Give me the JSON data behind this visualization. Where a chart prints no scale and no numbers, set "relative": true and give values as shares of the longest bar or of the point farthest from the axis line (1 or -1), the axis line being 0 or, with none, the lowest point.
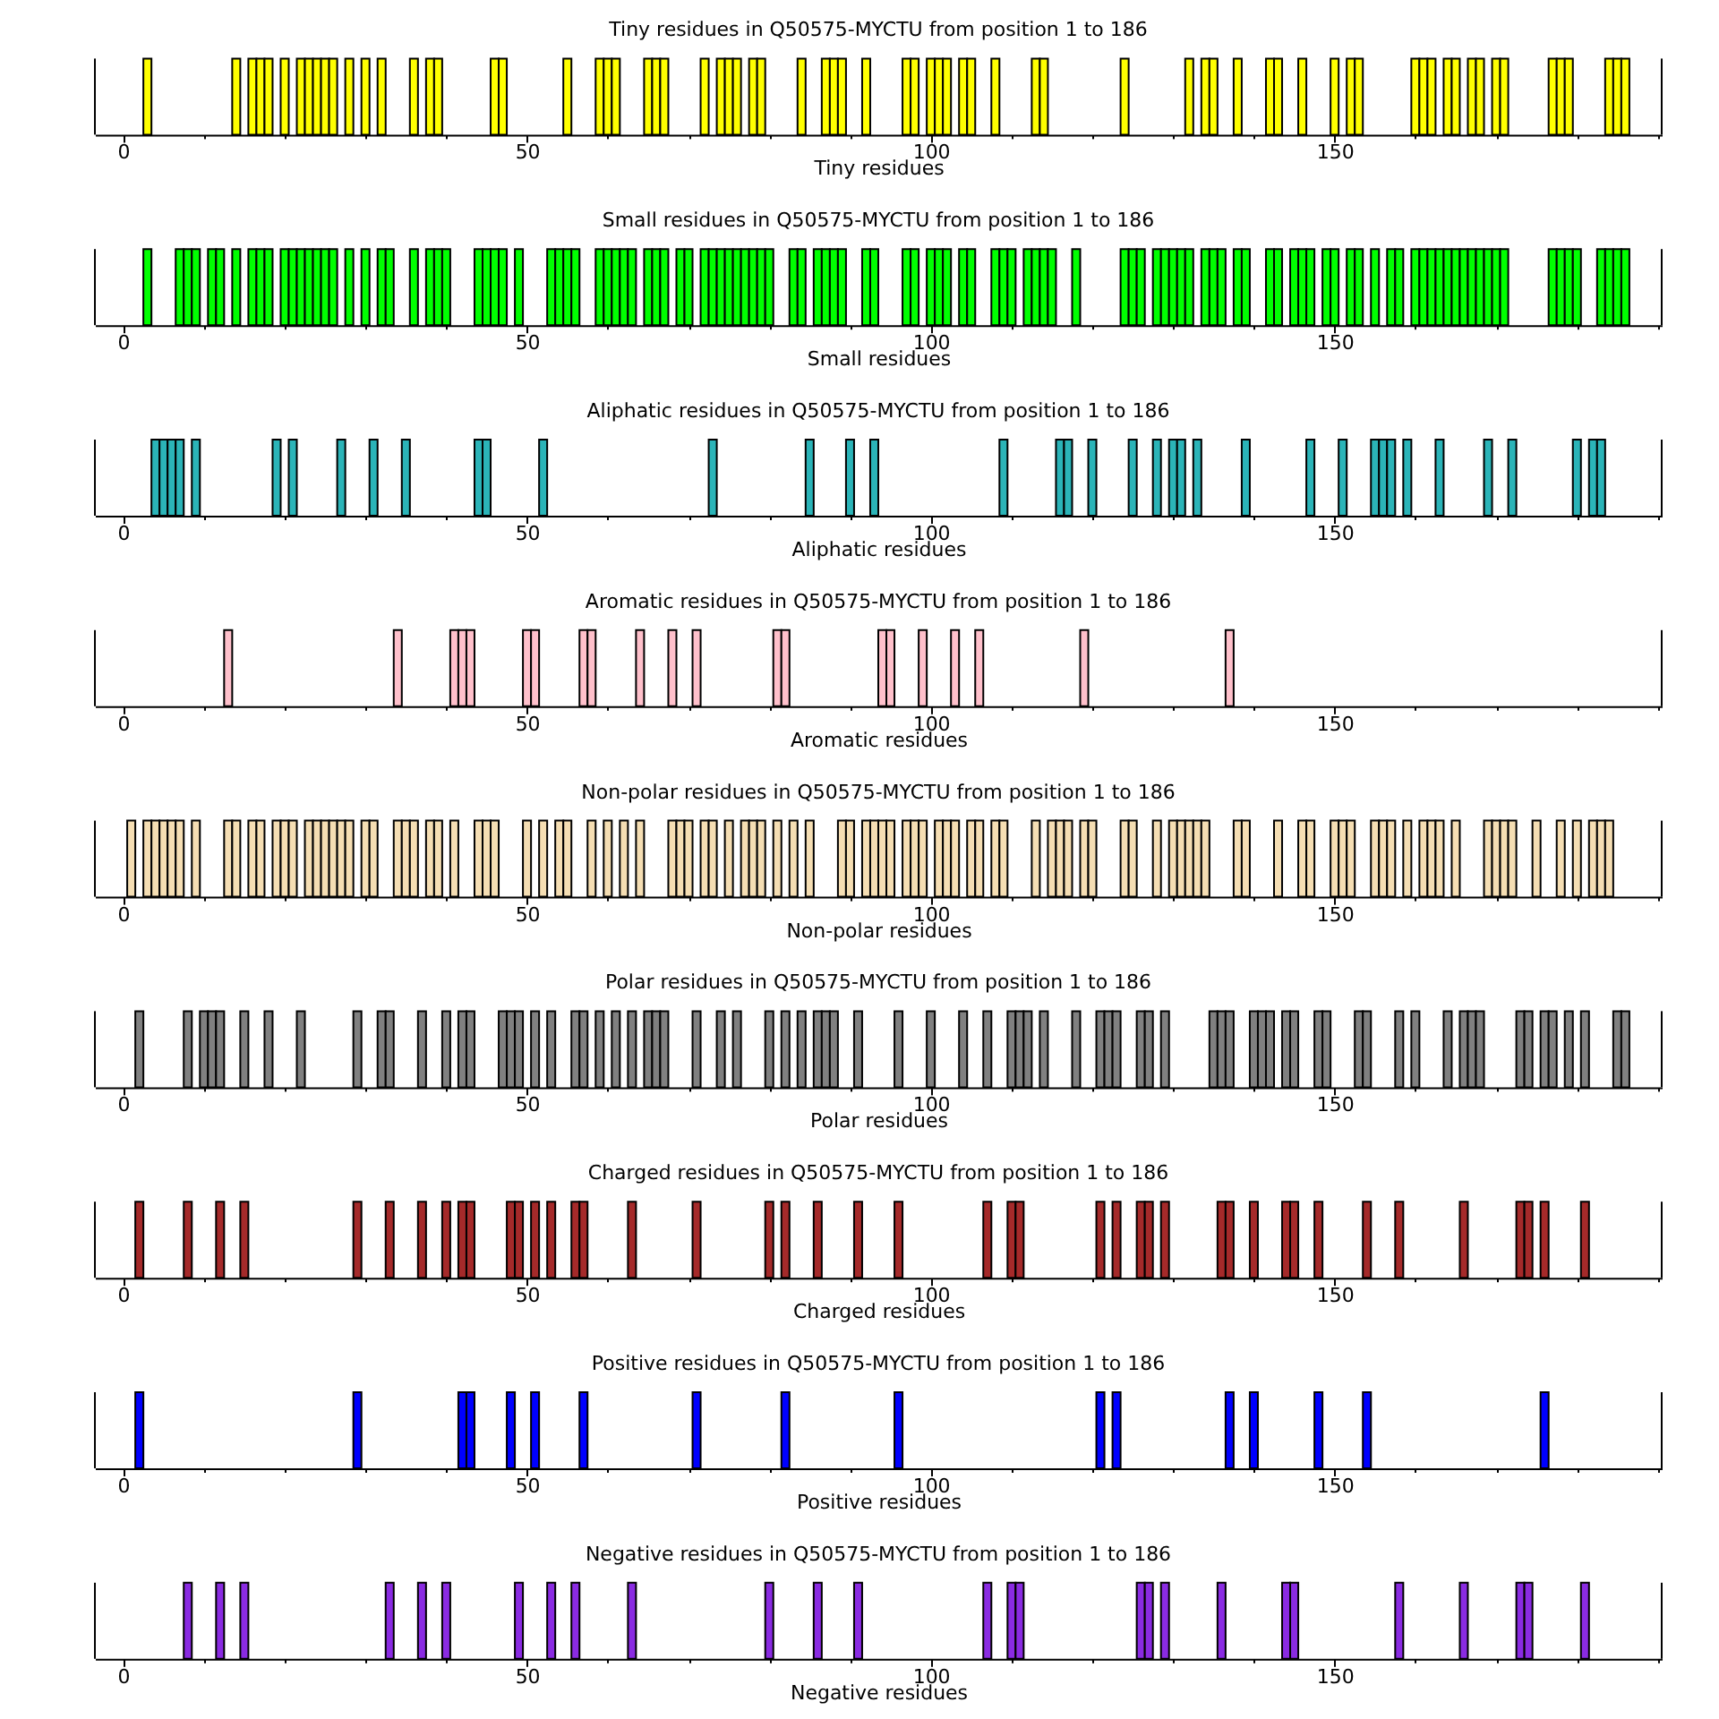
{
  "chart_data": [
    {
      "type": "bar",
      "title": "Tiny residues in Q50575-MYCTU from position 1 to 186",
      "xlabel": "Tiny residues",
      "color": "#ffff00",
      "relative": true,
      "xlim": [
        -3.5,
        190.5
      ],
      "xticks": [
        0,
        {
          "value": 10,
          "label": null
        },
        {
          "value": 20,
          "label": null
        },
        {
          "value": 30,
          "label": null
        },
        {
          "value": 40,
          "label": null
        },
        50,
        {
          "value": 60,
          "label": null
        },
        {
          "value": 70,
          "label": null
        },
        {
          "value": 80,
          "label": null
        },
        {
          "value": 90,
          "label": null
        },
        100,
        {
          "value": 110,
          "label": null
        },
        {
          "value": 120,
          "label": null
        },
        {
          "value": 130,
          "label": null
        },
        {
          "value": 140,
          "label": null
        },
        150,
        {
          "value": 160,
          "label": null
        },
        {
          "value": 170,
          "label": null
        },
        {
          "value": 180,
          "label": null
        },
        {
          "value": 190,
          "label": null
        }
      ],
      "x": [
        3,
        14,
        16,
        17,
        18,
        20,
        22,
        23,
        24,
        25,
        26,
        28,
        30,
        32,
        36,
        38,
        39,
        46,
        47,
        55,
        59,
        60,
        61,
        65,
        66,
        67,
        72,
        74,
        75,
        76,
        78,
        79,
        84,
        87,
        88,
        89,
        92,
        97,
        98,
        100,
        101,
        102,
        104,
        105,
        108,
        113,
        114,
        124,
        132,
        134,
        135,
        138,
        142,
        143,
        146,
        150,
        152,
        153,
        160,
        161,
        162,
        164,
        165,
        167,
        168,
        170,
        171,
        177,
        178,
        179,
        184,
        185,
        186
      ],
      "values": [
        1,
        1,
        1,
        1,
        1,
        1,
        1,
        1,
        1,
        1,
        1,
        1,
        1,
        1,
        1,
        1,
        1,
        1,
        1,
        1,
        1,
        1,
        1,
        1,
        1,
        1,
        1,
        1,
        1,
        1,
        1,
        1,
        1,
        1,
        1,
        1,
        1,
        1,
        1,
        1,
        1,
        1,
        1,
        1,
        1,
        1,
        1,
        1,
        1,
        1,
        1,
        1,
        1,
        1,
        1,
        1,
        1,
        1,
        1,
        1,
        1,
        1,
        1,
        1,
        1,
        1,
        1,
        1,
        1,
        1,
        1,
        1,
        1
      ]
    },
    {
      "type": "bar",
      "title": "Small residues in Q50575-MYCTU from position 1 to 186",
      "xlabel": "Small residues",
      "color": "#00ff00",
      "relative": true,
      "xlim": [
        -3.5,
        190.5
      ],
      "xticks": [
        0,
        {
          "value": 10,
          "label": null
        },
        {
          "value": 20,
          "label": null
        },
        {
          "value": 30,
          "label": null
        },
        {
          "value": 40,
          "label": null
        },
        50,
        {
          "value": 60,
          "label": null
        },
        {
          "value": 70,
          "label": null
        },
        {
          "value": 80,
          "label": null
        },
        {
          "value": 90,
          "label": null
        },
        100,
        {
          "value": 110,
          "label": null
        },
        {
          "value": 120,
          "label": null
        },
        {
          "value": 130,
          "label": null
        },
        {
          "value": 140,
          "label": null
        },
        150,
        {
          "value": 160,
          "label": null
        },
        {
          "value": 170,
          "label": null
        },
        {
          "value": 180,
          "label": null
        },
        {
          "value": 190,
          "label": null
        }
      ],
      "x": [
        3,
        7,
        8,
        9,
        11,
        12,
        14,
        16,
        17,
        18,
        20,
        21,
        22,
        23,
        24,
        25,
        26,
        28,
        30,
        32,
        33,
        36,
        38,
        39,
        40,
        44,
        45,
        46,
        47,
        49,
        53,
        54,
        55,
        56,
        59,
        60,
        61,
        62,
        63,
        65,
        66,
        67,
        69,
        70,
        72,
        73,
        74,
        75,
        76,
        77,
        78,
        79,
        80,
        83,
        84,
        86,
        87,
        88,
        89,
        92,
        93,
        97,
        98,
        100,
        101,
        102,
        104,
        105,
        108,
        109,
        110,
        112,
        113,
        114,
        115,
        118,
        124,
        125,
        126,
        128,
        129,
        130,
        131,
        132,
        134,
        135,
        136,
        138,
        139,
        142,
        143,
        145,
        146,
        147,
        149,
        150,
        152,
        153,
        155,
        157,
        158,
        160,
        161,
        162,
        163,
        164,
        165,
        166,
        167,
        168,
        169,
        170,
        171,
        177,
        178,
        179,
        180,
        183,
        184,
        185,
        186
      ],
      "values": [
        1,
        1,
        1,
        1,
        1,
        1,
        1,
        1,
        1,
        1,
        1,
        1,
        1,
        1,
        1,
        1,
        1,
        1,
        1,
        1,
        1,
        1,
        1,
        1,
        1,
        1,
        1,
        1,
        1,
        1,
        1,
        1,
        1,
        1,
        1,
        1,
        1,
        1,
        1,
        1,
        1,
        1,
        1,
        1,
        1,
        1,
        1,
        1,
        1,
        1,
        1,
        1,
        1,
        1,
        1,
        1,
        1,
        1,
        1,
        1,
        1,
        1,
        1,
        1,
        1,
        1,
        1,
        1,
        1,
        1,
        1,
        1,
        1,
        1,
        1,
        1,
        1,
        1,
        1,
        1,
        1,
        1,
        1,
        1,
        1,
        1,
        1,
        1,
        1,
        1,
        1,
        1,
        1,
        1,
        1,
        1,
        1,
        1,
        1,
        1,
        1,
        1,
        1,
        1,
        1,
        1,
        1,
        1,
        1,
        1,
        1,
        1,
        1,
        1,
        1,
        1,
        1,
        1,
        1,
        1,
        1
      ]
    },
    {
      "type": "bar",
      "title": "Aliphatic residues in Q50575-MYCTU from position 1 to 186",
      "xlabel": "Aliphatic residues",
      "color": "#2bb4b8",
      "relative": true,
      "xlim": [
        -3.5,
        190.5
      ],
      "xticks": [
        0,
        {
          "value": 10,
          "label": null
        },
        {
          "value": 20,
          "label": null
        },
        {
          "value": 30,
          "label": null
        },
        {
          "value": 40,
          "label": null
        },
        50,
        {
          "value": 60,
          "label": null
        },
        {
          "value": 70,
          "label": null
        },
        {
          "value": 80,
          "label": null
        },
        {
          "value": 90,
          "label": null
        },
        100,
        {
          "value": 110,
          "label": null
        },
        {
          "value": 120,
          "label": null
        },
        {
          "value": 130,
          "label": null
        },
        {
          "value": 140,
          "label": null
        },
        150,
        {
          "value": 160,
          "label": null
        },
        {
          "value": 170,
          "label": null
        },
        {
          "value": 180,
          "label": null
        },
        {
          "value": 190,
          "label": null
        }
      ],
      "x": [
        4,
        5,
        6,
        7,
        9,
        19,
        21,
        27,
        31,
        35,
        44,
        45,
        52,
        73,
        85,
        90,
        93,
        109,
        116,
        117,
        120,
        125,
        128,
        130,
        131,
        133,
        139,
        147,
        151,
        155,
        156,
        157,
        159,
        163,
        169,
        172,
        180,
        182,
        183
      ],
      "values": [
        1,
        1,
        1,
        1,
        1,
        1,
        1,
        1,
        1,
        1,
        1,
        1,
        1,
        1,
        1,
        1,
        1,
        1,
        1,
        1,
        1,
        1,
        1,
        1,
        1,
        1,
        1,
        1,
        1,
        1,
        1,
        1,
        1,
        1,
        1,
        1,
        1,
        1,
        1
      ]
    },
    {
      "type": "bar",
      "title": "Aromatic residues in Q50575-MYCTU from position 1 to 186",
      "xlabel": "Aromatic residues",
      "color": "#ffc0cb",
      "relative": true,
      "xlim": [
        -3.5,
        190.5
      ],
      "xticks": [
        0,
        {
          "value": 10,
          "label": null
        },
        {
          "value": 20,
          "label": null
        },
        {
          "value": 30,
          "label": null
        },
        {
          "value": 40,
          "label": null
        },
        50,
        {
          "value": 60,
          "label": null
        },
        {
          "value": 70,
          "label": null
        },
        {
          "value": 80,
          "label": null
        },
        {
          "value": 90,
          "label": null
        },
        100,
        {
          "value": 110,
          "label": null
        },
        {
          "value": 120,
          "label": null
        },
        {
          "value": 130,
          "label": null
        },
        {
          "value": 140,
          "label": null
        },
        150,
        {
          "value": 160,
          "label": null
        },
        {
          "value": 170,
          "label": null
        },
        {
          "value": 180,
          "label": null
        },
        {
          "value": 190,
          "label": null
        }
      ],
      "x": [
        13,
        34,
        41,
        42,
        43,
        50,
        51,
        57,
        58,
        64,
        68,
        71,
        81,
        82,
        94,
        95,
        99,
        103,
        106,
        119,
        137
      ],
      "values": [
        1,
        1,
        1,
        1,
        1,
        1,
        1,
        1,
        1,
        1,
        1,
        1,
        1,
        1,
        1,
        1,
        1,
        1,
        1,
        1,
        1
      ]
    },
    {
      "type": "bar",
      "title": "Non-polar residues in Q50575-MYCTU from position 1 to 186",
      "xlabel": "Non-polar residues",
      "color": "#f5deb3",
      "relative": true,
      "xlim": [
        -3.5,
        190.5
      ],
      "xticks": [
        0,
        {
          "value": 10,
          "label": null
        },
        {
          "value": 20,
          "label": null
        },
        {
          "value": 30,
          "label": null
        },
        {
          "value": 40,
          "label": null
        },
        50,
        {
          "value": 60,
          "label": null
        },
        {
          "value": 70,
          "label": null
        },
        {
          "value": 80,
          "label": null
        },
        {
          "value": 90,
          "label": null
        },
        100,
        {
          "value": 110,
          "label": null
        },
        {
          "value": 120,
          "label": null
        },
        {
          "value": 130,
          "label": null
        },
        {
          "value": 140,
          "label": null
        },
        150,
        {
          "value": 160,
          "label": null
        },
        {
          "value": 170,
          "label": null
        },
        {
          "value": 180,
          "label": null
        },
        {
          "value": 190,
          "label": null
        }
      ],
      "x": [
        1,
        3,
        4,
        5,
        6,
        7,
        9,
        13,
        14,
        16,
        17,
        19,
        20,
        21,
        23,
        24,
        25,
        26,
        27,
        28,
        30,
        31,
        34,
        35,
        36,
        38,
        39,
        41,
        44,
        45,
        46,
        50,
        52,
        54,
        55,
        58,
        60,
        62,
        64,
        68,
        69,
        70,
        72,
        73,
        75,
        77,
        78,
        79,
        81,
        83,
        85,
        89,
        90,
        92,
        93,
        94,
        95,
        97,
        98,
        99,
        101,
        102,
        103,
        105,
        106,
        108,
        109,
        113,
        115,
        116,
        117,
        119,
        120,
        124,
        125,
        128,
        130,
        131,
        132,
        133,
        134,
        138,
        139,
        143,
        146,
        147,
        150,
        151,
        152,
        155,
        156,
        157,
        159,
        161,
        162,
        163,
        165,
        169,
        170,
        171,
        172,
        175,
        178,
        180,
        182,
        183,
        184
      ],
      "values": [
        1,
        1,
        1,
        1,
        1,
        1,
        1,
        1,
        1,
        1,
        1,
        1,
        1,
        1,
        1,
        1,
        1,
        1,
        1,
        1,
        1,
        1,
        1,
        1,
        1,
        1,
        1,
        1,
        1,
        1,
        1,
        1,
        1,
        1,
        1,
        1,
        1,
        1,
        1,
        1,
        1,
        1,
        1,
        1,
        1,
        1,
        1,
        1,
        1,
        1,
        1,
        1,
        1,
        1,
        1,
        1,
        1,
        1,
        1,
        1,
        1,
        1,
        1,
        1,
        1,
        1,
        1,
        1,
        1,
        1,
        1,
        1,
        1,
        1,
        1,
        1,
        1,
        1,
        1,
        1,
        1,
        1,
        1,
        1,
        1,
        1,
        1,
        1,
        1,
        1,
        1,
        1,
        1,
        1,
        1,
        1,
        1,
        1,
        1,
        1,
        1,
        1,
        1,
        1,
        1,
        1,
        1
      ]
    },
    {
      "type": "bar",
      "title": "Polar residues in Q50575-MYCTU from position 1 to 186",
      "xlabel": "Polar residues",
      "color": "#808080",
      "relative": true,
      "xlim": [
        -3.5,
        190.5
      ],
      "xticks": [
        0,
        {
          "value": 10,
          "label": null
        },
        {
          "value": 20,
          "label": null
        },
        {
          "value": 30,
          "label": null
        },
        {
          "value": 40,
          "label": null
        },
        50,
        {
          "value": 60,
          "label": null
        },
        {
          "value": 70,
          "label": null
        },
        {
          "value": 80,
          "label": null
        },
        {
          "value": 90,
          "label": null
        },
        100,
        {
          "value": 110,
          "label": null
        },
        {
          "value": 120,
          "label": null
        },
        {
          "value": 130,
          "label": null
        },
        {
          "value": 140,
          "label": null
        },
        150,
        {
          "value": 160,
          "label": null
        },
        {
          "value": 170,
          "label": null
        },
        {
          "value": 180,
          "label": null
        },
        {
          "value": 190,
          "label": null
        }
      ],
      "x": [
        2,
        8,
        10,
        11,
        12,
        15,
        18,
        22,
        29,
        32,
        33,
        37,
        40,
        42,
        43,
        47,
        48,
        49,
        51,
        53,
        56,
        57,
        59,
        61,
        63,
        65,
        66,
        67,
        71,
        74,
        76,
        80,
        82,
        84,
        86,
        87,
        88,
        91,
        96,
        100,
        104,
        107,
        110,
        111,
        112,
        114,
        118,
        121,
        122,
        123,
        126,
        127,
        129,
        135,
        136,
        137,
        140,
        141,
        142,
        144,
        145,
        148,
        149,
        153,
        154,
        158,
        160,
        164,
        166,
        167,
        168,
        173,
        174,
        176,
        177,
        179,
        181,
        185,
        186
      ],
      "values": [
        1,
        1,
        1,
        1,
        1,
        1,
        1,
        1,
        1,
        1,
        1,
        1,
        1,
        1,
        1,
        1,
        1,
        1,
        1,
        1,
        1,
        1,
        1,
        1,
        1,
        1,
        1,
        1,
        1,
        1,
        1,
        1,
        1,
        1,
        1,
        1,
        1,
        1,
        1,
        1,
        1,
        1,
        1,
        1,
        1,
        1,
        1,
        1,
        1,
        1,
        1,
        1,
        1,
        1,
        1,
        1,
        1,
        1,
        1,
        1,
        1,
        1,
        1,
        1,
        1,
        1,
        1,
        1,
        1,
        1,
        1,
        1,
        1,
        1,
        1,
        1,
        1,
        1,
        1
      ]
    },
    {
      "type": "bar",
      "title": "Charged residues in Q50575-MYCTU from position 1 to 186",
      "xlabel": "Charged residues",
      "color": "#a52a2a",
      "relative": true,
      "xlim": [
        -3.5,
        190.5
      ],
      "xticks": [
        0,
        {
          "value": 10,
          "label": null
        },
        {
          "value": 20,
          "label": null
        },
        {
          "value": 30,
          "label": null
        },
        {
          "value": 40,
          "label": null
        },
        50,
        {
          "value": 60,
          "label": null
        },
        {
          "value": 70,
          "label": null
        },
        {
          "value": 80,
          "label": null
        },
        {
          "value": 90,
          "label": null
        },
        100,
        {
          "value": 110,
          "label": null
        },
        {
          "value": 120,
          "label": null
        },
        {
          "value": 130,
          "label": null
        },
        {
          "value": 140,
          "label": null
        },
        150,
        {
          "value": 160,
          "label": null
        },
        {
          "value": 170,
          "label": null
        },
        {
          "value": 180,
          "label": null
        },
        {
          "value": 190,
          "label": null
        }
      ],
      "x": [
        2,
        8,
        12,
        15,
        29,
        33,
        37,
        40,
        42,
        43,
        48,
        49,
        51,
        53,
        56,
        57,
        63,
        71,
        80,
        82,
        86,
        91,
        96,
        107,
        110,
        111,
        121,
        123,
        126,
        127,
        129,
        136,
        137,
        140,
        144,
        145,
        148,
        154,
        158,
        166,
        173,
        174,
        176,
        181
      ],
      "values": [
        1,
        1,
        1,
        1,
        1,
        1,
        1,
        1,
        1,
        1,
        1,
        1,
        1,
        1,
        1,
        1,
        1,
        1,
        1,
        1,
        1,
        1,
        1,
        1,
        1,
        1,
        1,
        1,
        1,
        1,
        1,
        1,
        1,
        1,
        1,
        1,
        1,
        1,
        1,
        1,
        1,
        1,
        1,
        1
      ]
    },
    {
      "type": "bar",
      "title": "Positive residues in Q50575-MYCTU from position 1 to 186",
      "xlabel": "Positive residues",
      "color": "#0000ff",
      "relative": true,
      "xlim": [
        -3.5,
        190.5
      ],
      "xticks": [
        0,
        {
          "value": 10,
          "label": null
        },
        {
          "value": 20,
          "label": null
        },
        {
          "value": 30,
          "label": null
        },
        {
          "value": 40,
          "label": null
        },
        50,
        {
          "value": 60,
          "label": null
        },
        {
          "value": 70,
          "label": null
        },
        {
          "value": 80,
          "label": null
        },
        {
          "value": 90,
          "label": null
        },
        100,
        {
          "value": 110,
          "label": null
        },
        {
          "value": 120,
          "label": null
        },
        {
          "value": 130,
          "label": null
        },
        {
          "value": 140,
          "label": null
        },
        150,
        {
          "value": 160,
          "label": null
        },
        {
          "value": 170,
          "label": null
        },
        {
          "value": 180,
          "label": null
        },
        {
          "value": 190,
          "label": null
        }
      ],
      "x": [
        2,
        29,
        42,
        43,
        48,
        51,
        57,
        71,
        82,
        96,
        121,
        123,
        137,
        140,
        148,
        154,
        176
      ],
      "values": [
        1,
        1,
        1,
        1,
        1,
        1,
        1,
        1,
        1,
        1,
        1,
        1,
        1,
        1,
        1,
        1,
        1
      ]
    },
    {
      "type": "bar",
      "title": "Negative residues in Q50575-MYCTU from position 1 to 186",
      "xlabel": "Negative residues",
      "color": "#8a2be2",
      "relative": true,
      "xlim": [
        -3.5,
        190.5
      ],
      "xticks": [
        0,
        {
          "value": 10,
          "label": null
        },
        {
          "value": 20,
          "label": null
        },
        {
          "value": 30,
          "label": null
        },
        {
          "value": 40,
          "label": null
        },
        50,
        {
          "value": 60,
          "label": null
        },
        {
          "value": 70,
          "label": null
        },
        {
          "value": 80,
          "label": null
        },
        {
          "value": 90,
          "label": null
        },
        100,
        {
          "value": 110,
          "label": null
        },
        {
          "value": 120,
          "label": null
        },
        {
          "value": 130,
          "label": null
        },
        {
          "value": 140,
          "label": null
        },
        150,
        {
          "value": 160,
          "label": null
        },
        {
          "value": 170,
          "label": null
        },
        {
          "value": 180,
          "label": null
        },
        {
          "value": 190,
          "label": null
        }
      ],
      "x": [
        8,
        12,
        15,
        33,
        37,
        40,
        49,
        53,
        56,
        63,
        80,
        86,
        91,
        107,
        110,
        111,
        126,
        127,
        129,
        136,
        144,
        145,
        158,
        166,
        173,
        174,
        181
      ],
      "values": [
        1,
        1,
        1,
        1,
        1,
        1,
        1,
        1,
        1,
        1,
        1,
        1,
        1,
        1,
        1,
        1,
        1,
        1,
        1,
        1,
        1,
        1,
        1,
        1,
        1,
        1,
        1
      ]
    }
  ]
}
